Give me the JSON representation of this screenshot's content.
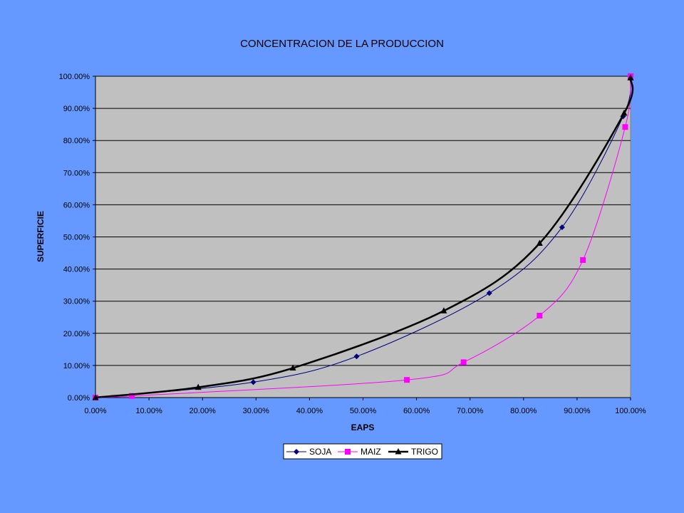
{
  "chart_data": {
    "type": "line",
    "title": "CONCENTRACION DE LA PRODUCCION",
    "xlabel": "EAPS",
    "ylabel": "SUPERFICIE",
    "xlim": [
      0,
      100
    ],
    "ylim": [
      0,
      100
    ],
    "x_ticks": [
      "0.00%",
      "10.00%",
      "20.00%",
      "30.00%",
      "40.00%",
      "50.00%",
      "60.00%",
      "70.00%",
      "80.00%",
      "90.00%",
      "100.00%"
    ],
    "y_ticks": [
      "0.00%",
      "10.00%",
      "20.00%",
      "30.00%",
      "40.00%",
      "50.00%",
      "60.00%",
      "70.00%",
      "80.00%",
      "90.00%",
      "100.00%"
    ],
    "grid": "horizontal",
    "plot_background": "#c0c0c0",
    "legend_position": "bottom",
    "series": [
      {
        "name": "SOJA",
        "color": "#000080",
        "marker": "diamond",
        "points": [
          [
            0,
            0
          ],
          [
            29.5,
            4.8
          ],
          [
            48.8,
            12.8
          ],
          [
            73.6,
            32.5
          ],
          [
            87.2,
            53.0
          ],
          [
            98.6,
            87.5
          ],
          [
            100,
            100
          ]
        ]
      },
      {
        "name": "MAIZ",
        "color": "#ff00ff",
        "marker": "square",
        "points": [
          [
            0,
            0
          ],
          [
            6.8,
            0.5
          ],
          [
            58.2,
            5.5
          ],
          [
            68.8,
            11.0
          ],
          [
            83.0,
            25.5
          ],
          [
            91.1,
            42.8
          ],
          [
            99.0,
            84.2
          ],
          [
            100,
            100
          ]
        ]
      },
      {
        "name": "TRIGO",
        "color": "#000000",
        "marker": "triangle",
        "points": [
          [
            0,
            0
          ],
          [
            19.2,
            3.2
          ],
          [
            36.9,
            9.2
          ],
          [
            65.1,
            27.0
          ],
          [
            83.0,
            48.0
          ],
          [
            98.8,
            88.5
          ],
          [
            100,
            99.5
          ]
        ]
      }
    ]
  }
}
